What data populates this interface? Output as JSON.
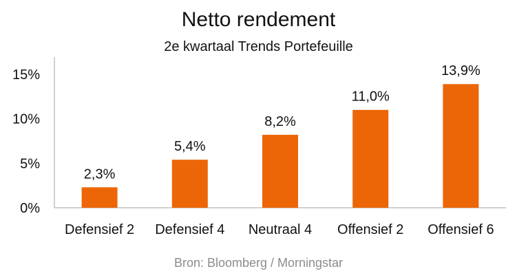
{
  "chart_data": {
    "type": "bar",
    "title": "Netto rendement",
    "subtitle": "2e kwartaal Trends Portefeuille",
    "source": "Bron: Bloomberg / Morningstar",
    "categories": [
      "Defensief 2",
      "Defensief 4",
      "Neutraal 4",
      "Offensief 2",
      "Offensief 6"
    ],
    "values": [
      2.3,
      5.4,
      8.2,
      11.0,
      13.9
    ],
    "value_labels": [
      "2,3%",
      "5,4%",
      "8,2%",
      "11,0%",
      "13,9%"
    ],
    "ytick_values": [
      0,
      5,
      10,
      15
    ],
    "ytick_labels": [
      "0%",
      "5%",
      "10%",
      "15%"
    ],
    "ylim": [
      0,
      15
    ],
    "xlabel": "",
    "ylabel": "",
    "grid": false,
    "bar_color": "#ec6608"
  }
}
